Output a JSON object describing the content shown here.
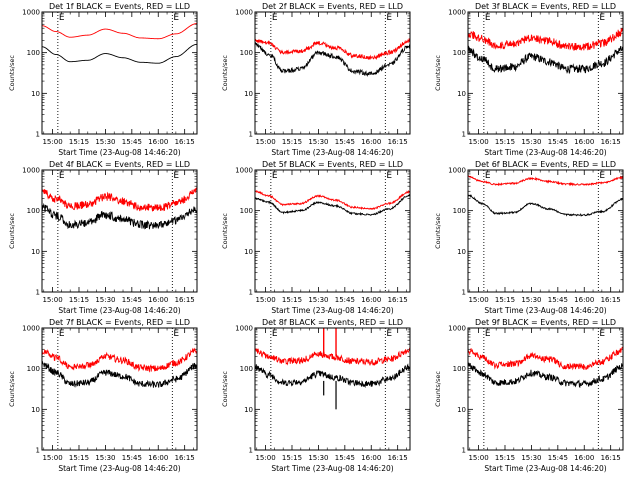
{
  "chart_data": [
    {
      "type": "line",
      "title": "Det 1f BLACK = Events, RED = LLD",
      "xlabel": "Start Time (23-Aug-08 14:46:20)",
      "ylabel": "Counts/sec",
      "yscale": "log",
      "ylim": [
        1,
        1000
      ],
      "xlim": [
        "14:54",
        "16:22"
      ],
      "x_tick_labels": [
        "15:00",
        "15:15",
        "15:30",
        "15:45",
        "16:00",
        "16:15"
      ],
      "y_tick_labels": [
        "1",
        "10",
        "100",
        "1000"
      ],
      "markers": [
        {
          "time": "15:03",
          "label": "E"
        },
        {
          "time": "16:08",
          "label": "E"
        }
      ],
      "noise": 0.0,
      "series": [
        {
          "color": "#ff0000",
          "x": [
            "14:54",
            "15:02",
            "15:10",
            "15:20",
            "15:30",
            "15:40",
            "15:50",
            "16:00",
            "16:10",
            "16:22"
          ],
          "y": [
            460,
            330,
            240,
            270,
            380,
            300,
            230,
            220,
            290,
            520
          ]
        },
        {
          "color": "#000000",
          "x": [
            "14:54",
            "15:02",
            "15:10",
            "15:20",
            "15:30",
            "15:40",
            "15:50",
            "16:00",
            "16:10",
            "16:22"
          ],
          "y": [
            140,
            90,
            60,
            65,
            95,
            75,
            58,
            55,
            80,
            160
          ]
        }
      ]
    },
    {
      "type": "line",
      "title": "Det 2f BLACK = Events, RED = LLD",
      "xlabel": "Start Time (23-Aug-08 14:46:20)",
      "ylabel": "Counts/sec",
      "yscale": "log",
      "ylim": [
        1,
        1000
      ],
      "xlim": [
        "14:54",
        "16:22"
      ],
      "x_tick_labels": [
        "15:00",
        "15:15",
        "15:30",
        "15:45",
        "16:00",
        "16:15"
      ],
      "y_tick_labels": [
        "1",
        "10",
        "100",
        "1000"
      ],
      "markers": [
        {
          "time": "15:03",
          "label": "E"
        },
        {
          "time": "16:08",
          "label": "E"
        }
      ],
      "noise": 0.05,
      "series": [
        {
          "color": "#ff0000",
          "x": [
            "14:54",
            "15:02",
            "15:10",
            "15:20",
            "15:30",
            "15:40",
            "15:50",
            "16:00",
            "16:10",
            "16:22"
          ],
          "y": [
            200,
            170,
            100,
            110,
            170,
            130,
            85,
            75,
            100,
            200
          ]
        },
        {
          "color": "#000000",
          "x": [
            "14:54",
            "15:02",
            "15:10",
            "15:20",
            "15:30",
            "15:40",
            "15:50",
            "16:00",
            "16:10",
            "16:22"
          ],
          "y": [
            160,
            90,
            35,
            40,
            100,
            80,
            35,
            30,
            50,
            150
          ]
        }
      ]
    },
    {
      "type": "line",
      "title": "Det 3f BLACK = Events, RED = LLD",
      "xlabel": "Start Time (23-Aug-08 14:46:20)",
      "ylabel": "Counts/sec",
      "yscale": "log",
      "ylim": [
        1,
        1000
      ],
      "xlim": [
        "14:54",
        "16:22"
      ],
      "x_tick_labels": [
        "15:00",
        "15:15",
        "15:30",
        "15:45",
        "16:00",
        "16:15"
      ],
      "y_tick_labels": [
        "1",
        "10",
        "100",
        "1000"
      ],
      "markers": [
        {
          "time": "15:03",
          "label": "E"
        },
        {
          "time": "16:08",
          "label": "E"
        }
      ],
      "noise": 0.1,
      "series": [
        {
          "color": "#ff0000",
          "x": [
            "14:54",
            "15:02",
            "15:10",
            "15:20",
            "15:30",
            "15:40",
            "15:50",
            "16:00",
            "16:10",
            "16:22"
          ],
          "y": [
            300,
            220,
            150,
            160,
            240,
            190,
            140,
            140,
            170,
            320
          ]
        },
        {
          "color": "#000000",
          "x": [
            "14:54",
            "15:02",
            "15:10",
            "15:20",
            "15:30",
            "15:40",
            "15:50",
            "16:00",
            "16:10",
            "16:22"
          ],
          "y": [
            110,
            70,
            40,
            45,
            80,
            60,
            40,
            40,
            55,
            120
          ]
        }
      ]
    },
    {
      "type": "line",
      "title": "Det 4f BLACK = Events, RED = LLD",
      "xlabel": "Start Time (23-Aug-08 14:46:20)",
      "ylabel": "Counts/sec",
      "yscale": "log",
      "ylim": [
        1,
        1000
      ],
      "xlim": [
        "14:54",
        "16:22"
      ],
      "x_tick_labels": [
        "15:00",
        "15:15",
        "15:30",
        "15:45",
        "16:00",
        "16:15"
      ],
      "y_tick_labels": [
        "1",
        "10",
        "100",
        "1000"
      ],
      "markers": [
        {
          "time": "15:03",
          "label": "E"
        },
        {
          "time": "16:08",
          "label": "E"
        }
      ],
      "noise": 0.1,
      "series": [
        {
          "color": "#ff0000",
          "x": [
            "14:54",
            "15:02",
            "15:10",
            "15:20",
            "15:30",
            "15:40",
            "15:50",
            "16:00",
            "16:10",
            "16:22"
          ],
          "y": [
            290,
            200,
            130,
            140,
            220,
            170,
            120,
            115,
            150,
            300
          ]
        },
        {
          "color": "#000000",
          "x": [
            "14:54",
            "15:02",
            "15:10",
            "15:20",
            "15:30",
            "15:40",
            "15:50",
            "16:00",
            "16:10",
            "16:22"
          ],
          "y": [
            120,
            75,
            45,
            50,
            80,
            62,
            45,
            42,
            58,
            110
          ]
        }
      ]
    },
    {
      "type": "line",
      "title": "Det 5f BLACK = Events, RED = LLD",
      "xlabel": "Start Time (23-Aug-08 14:46:20)",
      "ylabel": "Counts/sec",
      "yscale": "log",
      "ylim": [
        1,
        1000
      ],
      "xlim": [
        "14:54",
        "16:22"
      ],
      "x_tick_labels": [
        "15:00",
        "15:15",
        "15:30",
        "15:45",
        "16:00",
        "16:15"
      ],
      "y_tick_labels": [
        "1",
        "10",
        "100",
        "1000"
      ],
      "markers": [
        {
          "time": "15:03",
          "label": "E"
        },
        {
          "time": "16:08",
          "label": "E"
        }
      ],
      "noise": 0.02,
      "series": [
        {
          "color": "#ff0000",
          "x": [
            "14:54",
            "15:02",
            "15:10",
            "15:20",
            "15:30",
            "15:40",
            "15:50",
            "16:00",
            "16:10",
            "16:22"
          ],
          "y": [
            300,
            230,
            140,
            150,
            230,
            180,
            120,
            110,
            150,
            290
          ]
        },
        {
          "color": "#000000",
          "x": [
            "14:54",
            "15:02",
            "15:10",
            "15:20",
            "15:30",
            "15:40",
            "15:50",
            "16:00",
            "16:10",
            "16:22"
          ],
          "y": [
            200,
            160,
            90,
            100,
            160,
            130,
            85,
            80,
            110,
            240
          ]
        }
      ]
    },
    {
      "type": "line",
      "title": "Det 6f BLACK = Events, RED = LLD",
      "xlabel": "Start Time (23-Aug-08 14:46:20)",
      "ylabel": "Counts/sec",
      "yscale": "log",
      "ylim": [
        1,
        1000
      ],
      "xlim": [
        "14:54",
        "16:22"
      ],
      "x_tick_labels": [
        "15:00",
        "15:15",
        "15:30",
        "15:45",
        "16:00",
        "16:15"
      ],
      "y_tick_labels": [
        "1",
        "10",
        "100",
        "1000"
      ],
      "markers": [
        {
          "time": "15:03",
          "label": "E"
        },
        {
          "time": "16:08",
          "label": "E"
        }
      ],
      "noise": 0.02,
      "series": [
        {
          "color": "#ff0000",
          "x": [
            "14:54",
            "15:02",
            "15:10",
            "15:20",
            "15:30",
            "15:40",
            "15:50",
            "16:00",
            "16:10",
            "16:22"
          ],
          "y": [
            700,
            520,
            440,
            470,
            620,
            520,
            450,
            440,
            480,
            650
          ]
        },
        {
          "color": "#000000",
          "x": [
            "14:54",
            "15:02",
            "15:10",
            "15:20",
            "15:30",
            "15:40",
            "15:50",
            "16:00",
            "16:10",
            "16:22"
          ],
          "y": [
            240,
            150,
            85,
            90,
            150,
            110,
            80,
            78,
            95,
            190
          ]
        }
      ]
    },
    {
      "type": "line",
      "title": "Det 7f BLACK = Events, RED = LLD",
      "xlabel": "Start Time (23-Aug-08 14:46:20)",
      "ylabel": "Counts/sec",
      "yscale": "log",
      "ylim": [
        1,
        1000
      ],
      "xlim": [
        "14:54",
        "16:22"
      ],
      "x_tick_labels": [
        "15:00",
        "15:15",
        "15:30",
        "15:45",
        "16:00",
        "16:15"
      ],
      "y_tick_labels": [
        "1",
        "10",
        "100",
        "1000"
      ],
      "markers": [
        {
          "time": "15:03",
          "label": "E"
        },
        {
          "time": "16:08",
          "label": "E"
        }
      ],
      "noise": 0.08,
      "series": [
        {
          "color": "#ff0000",
          "x": [
            "14:54",
            "15:02",
            "15:10",
            "15:20",
            "15:30",
            "15:40",
            "15:50",
            "16:00",
            "16:10",
            "16:22"
          ],
          "y": [
            270,
            190,
            110,
            120,
            200,
            160,
            105,
            100,
            140,
            270
          ]
        },
        {
          "color": "#000000",
          "x": [
            "14:54",
            "15:02",
            "15:10",
            "15:20",
            "15:30",
            "15:40",
            "15:50",
            "16:00",
            "16:10",
            "16:22"
          ],
          "y": [
            130,
            80,
            42,
            45,
            80,
            65,
            42,
            40,
            55,
            120
          ]
        }
      ]
    },
    {
      "type": "line",
      "title": "Det 8f BLACK = Events, RED = LLD",
      "xlabel": "Start Time (23-Aug-08 14:46:20)",
      "ylabel": "Counts/sec",
      "yscale": "log",
      "ylim": [
        1,
        1000
      ],
      "xlim": [
        "14:54",
        "16:22"
      ],
      "x_tick_labels": [
        "15:00",
        "15:15",
        "15:30",
        "15:45",
        "16:00",
        "16:15"
      ],
      "y_tick_labels": [
        "1",
        "10",
        "100",
        "1000"
      ],
      "markers": [
        {
          "time": "15:03",
          "label": "E"
        },
        {
          "time": "16:08",
          "label": "E"
        }
      ],
      "noise": 0.08,
      "spikes": [
        {
          "time": "15:33",
          "red": 1000,
          "black": 22
        },
        {
          "time": "15:40",
          "red": 1000,
          "black": 10
        }
      ],
      "series": [
        {
          "color": "#ff0000",
          "x": [
            "14:54",
            "15:02",
            "15:10",
            "15:20",
            "15:30",
            "15:40",
            "15:50",
            "16:00",
            "16:10",
            "16:22"
          ],
          "y": [
            280,
            200,
            150,
            160,
            230,
            190,
            150,
            145,
            170,
            290
          ]
        },
        {
          "color": "#000000",
          "x": [
            "14:54",
            "15:02",
            "15:10",
            "15:20",
            "15:30",
            "15:40",
            "15:50",
            "16:00",
            "16:10",
            "16:22"
          ],
          "y": [
            110,
            70,
            45,
            48,
            75,
            60,
            45,
            42,
            55,
            110
          ]
        }
      ]
    },
    {
      "type": "line",
      "title": "Det 9f BLACK = Events, RED = LLD",
      "xlabel": "Start Time (23-Aug-08 14:46:20)",
      "ylabel": "Counts/sec",
      "yscale": "log",
      "ylim": [
        1,
        1000
      ],
      "xlim": [
        "14:54",
        "16:22"
      ],
      "x_tick_labels": [
        "15:00",
        "15:15",
        "15:30",
        "15:45",
        "16:00",
        "16:15"
      ],
      "y_tick_labels": [
        "1",
        "10",
        "100",
        "1000"
      ],
      "markers": [
        {
          "time": "15:03",
          "label": "E"
        },
        {
          "time": "16:08",
          "label": "E"
        }
      ],
      "noise": 0.08,
      "series": [
        {
          "color": "#ff0000",
          "x": [
            "14:54",
            "15:02",
            "15:10",
            "15:20",
            "15:30",
            "15:40",
            "15:50",
            "16:00",
            "16:10",
            "16:22"
          ],
          "y": [
            280,
            190,
            120,
            130,
            210,
            170,
            115,
            110,
            150,
            290
          ]
        },
        {
          "color": "#000000",
          "x": [
            "14:54",
            "15:02",
            "15:10",
            "15:20",
            "15:30",
            "15:40",
            "15:50",
            "16:00",
            "16:10",
            "16:22"
          ],
          "y": [
            120,
            75,
            45,
            48,
            78,
            62,
            44,
            42,
            55,
            115
          ]
        }
      ]
    }
  ]
}
